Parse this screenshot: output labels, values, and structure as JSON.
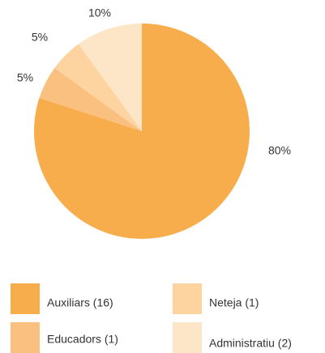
{
  "chart_data": {
    "type": "pie",
    "categories": [
      "Auxiliars (16)",
      "Educadors (1)",
      "Neteja (1)",
      "Administratiu (2)"
    ],
    "values": [
      80,
      5,
      5,
      10
    ],
    "value_labels": [
      "80%",
      "5%",
      "5%",
      "10%"
    ],
    "colors": [
      "#f8ad4c",
      "#fac080",
      "#fdd3a0",
      "#fde6c8"
    ]
  }
}
